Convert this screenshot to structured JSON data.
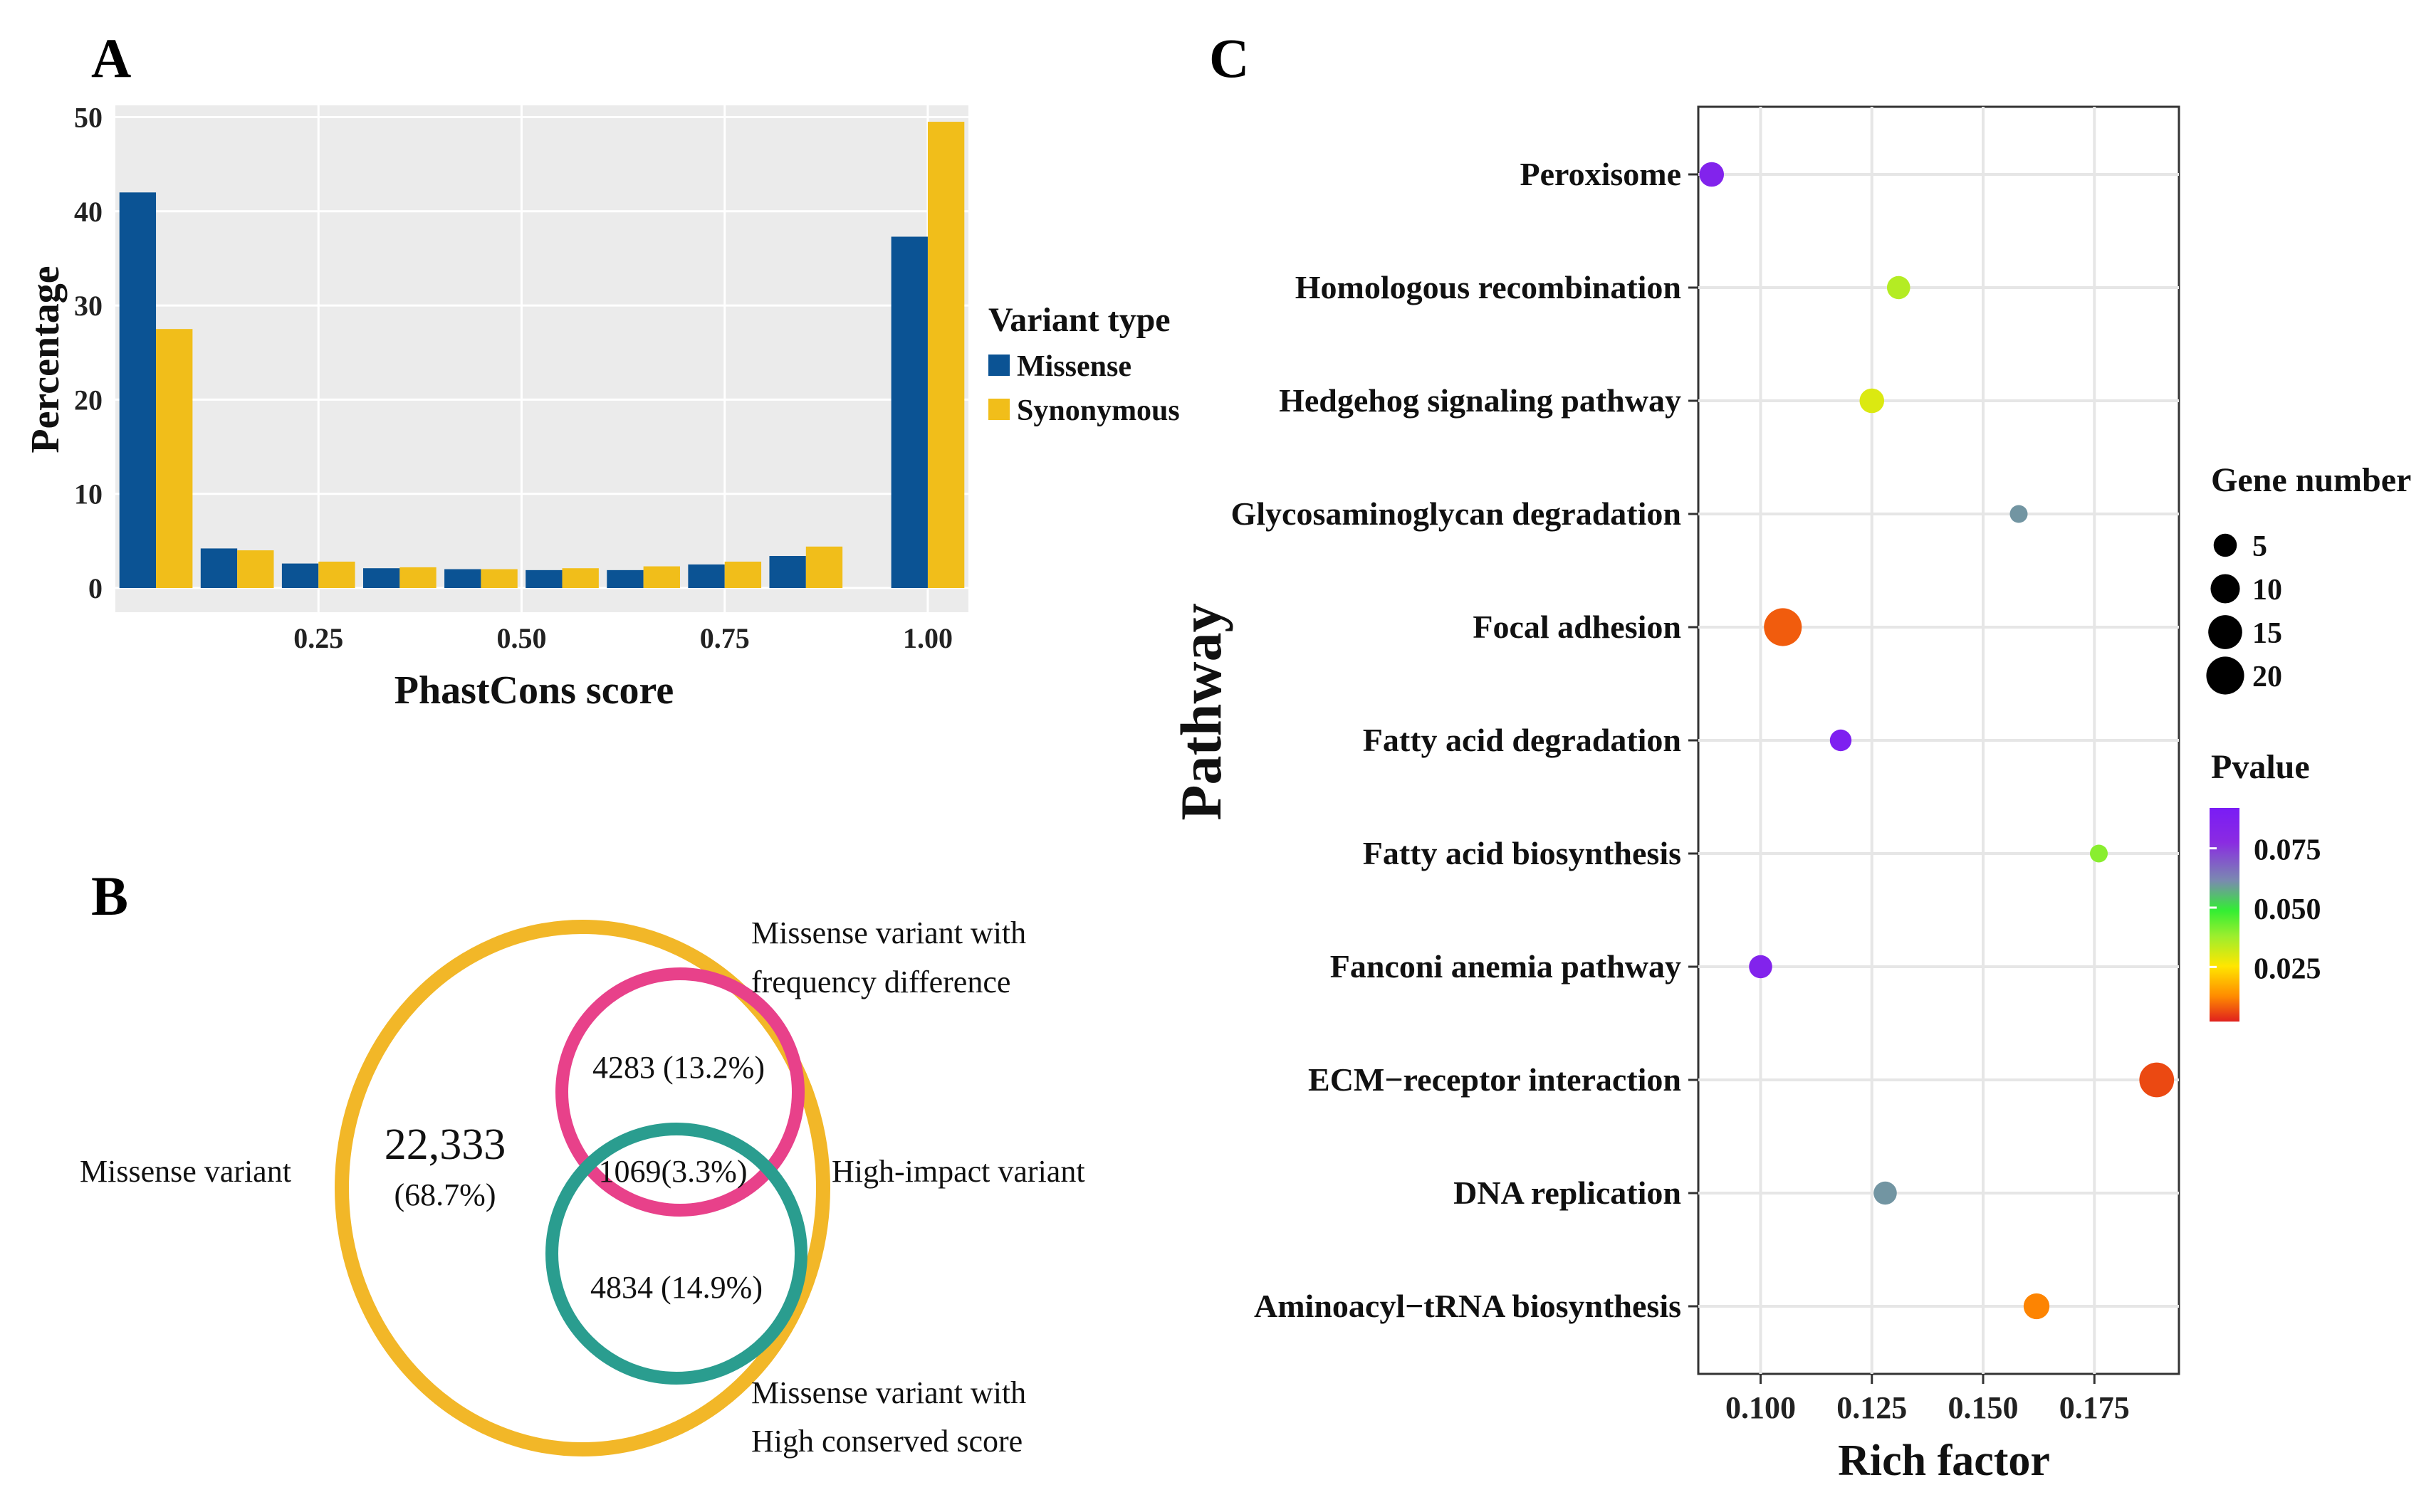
{
  "panels": {
    "a": "A",
    "b": "B",
    "c": "C"
  },
  "chart_data": [
    {
      "id": "panel-a",
      "type": "bar",
      "xlabel": "PhastCons score",
      "ylabel": "Percentage",
      "ylim": [
        0,
        52
      ],
      "xlim": [
        0,
        1.05
      ],
      "x_ticks": [
        "0.25",
        "0.50",
        "0.75",
        "1.00"
      ],
      "x_tick_values": [
        0.25,
        0.5,
        0.75,
        1.0
      ],
      "y_ticks": [
        "0",
        "10",
        "20",
        "30",
        "40",
        "50"
      ],
      "y_tick_values": [
        0,
        10,
        20,
        30,
        40,
        50
      ],
      "bin_centers": [
        0.05,
        0.15,
        0.25,
        0.35,
        0.45,
        0.55,
        0.65,
        0.75,
        0.85,
        0.95,
        1.0
      ],
      "legend_title": "Variant type",
      "series": [
        {
          "name": "Missense",
          "color": "#0b5394",
          "values": [
            42.0,
            4.2,
            2.6,
            2.1,
            2.0,
            1.9,
            1.9,
            2.5,
            3.4,
            0.0,
            37.3
          ]
        },
        {
          "name": "Synonymous",
          "color": "#f1be1a",
          "values": [
            27.5,
            4.0,
            2.8,
            2.2,
            2.0,
            2.1,
            2.3,
            2.8,
            4.4,
            0.0,
            49.5
          ]
        }
      ],
      "grid": true
    },
    {
      "id": "panel-c",
      "type": "scatter",
      "xlabel": "Rich factor",
      "ylabel": "Pathway",
      "xlim": [
        0.086,
        0.194
      ],
      "x_ticks": [
        "0.100",
        "0.125",
        "0.150",
        "0.175"
      ],
      "x_tick_values": [
        0.1,
        0.125,
        0.15,
        0.175
      ],
      "categories": [
        "Peroxisome",
        "Homologous recombination",
        "Hedgehog signaling pathway",
        "Glycosaminoglycan degradation",
        "Focal adhesion",
        "Fatty acid degradation",
        "Fatty acid biosynthesis",
        "Fanconi anemia pathway",
        "ECM−receptor interaction",
        "DNA replication",
        "Aminoacyl−tRNA biosynthesis"
      ],
      "rich_factor": [
        0.089,
        0.131,
        0.125,
        0.158,
        0.105,
        0.118,
        0.176,
        0.1,
        0.189,
        0.128,
        0.162
      ],
      "gene_number": [
        6,
        5,
        6,
        2,
        20,
        4,
        2,
        5,
        16,
        5,
        7
      ],
      "pvalue": [
        0.085,
        0.035,
        0.03,
        0.06,
        0.008,
        0.088,
        0.04,
        0.085,
        0.006,
        0.06,
        0.012
      ],
      "size_legend_title": "Gene number",
      "size_legend_values": [
        5,
        10,
        15,
        20
      ],
      "size_legend_labels": [
        "5",
        "10",
        "15",
        "20"
      ],
      "color_legend_title": "Pvalue",
      "color_legend_ticks": [
        "0.075",
        "0.050",
        "0.025"
      ],
      "color_legend_tick_values": [
        0.075,
        0.05,
        0.025
      ],
      "color_legend_range": [
        0.002,
        0.092
      ],
      "color_scale": [
        "#e0211d",
        "#ff8c00",
        "#ffe600",
        "#9cee2e",
        "#33ee33",
        "#7a8ab0",
        "#8a2be2",
        "#7a1cf5"
      ],
      "grid": true
    }
  ],
  "venn": {
    "outer": {
      "label": "Missense variant",
      "count": "22,333",
      "percent": "(68.7%)",
      "color": "#f2b728"
    },
    "pink": {
      "label_line1": "Missense variant with",
      "label_line2": "frequency difference",
      "value": "4283 (13.2%)",
      "color": "#e8418a"
    },
    "overlap": {
      "value": "1069(3.3%)",
      "label": "High-impact variant"
    },
    "teal": {
      "label_line1": "Missense variant with",
      "label_line2": "High conserved score",
      "value": "4834 (14.9%)",
      "color": "#2a9d8f"
    }
  }
}
